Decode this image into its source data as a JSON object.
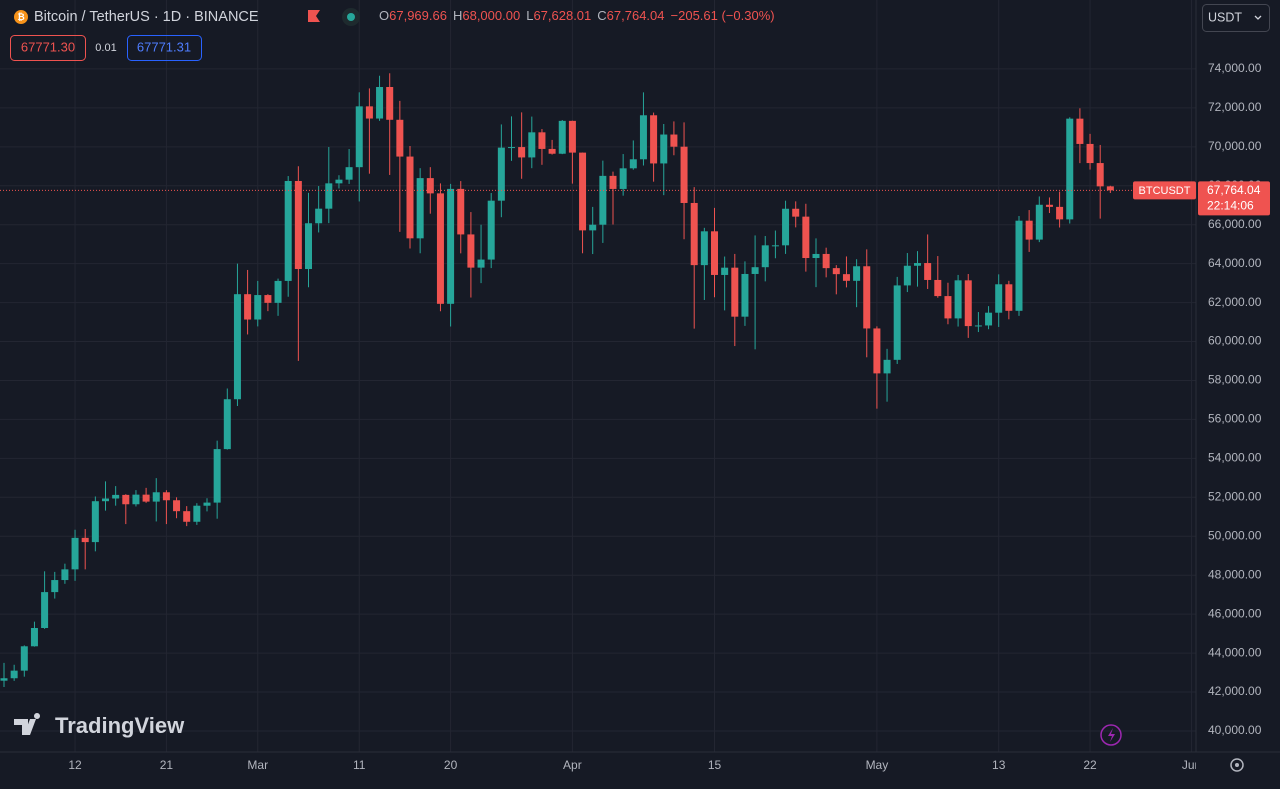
{
  "chart_data": {
    "type": "candlestick",
    "title": "Bitcoin / TetherUS · 1D · BINANCE",
    "ohlc_legend": [
      {
        "key": "O",
        "value": "67,969.66"
      },
      {
        "key": "H",
        "value": "68,000.00"
      },
      {
        "key": "L",
        "value": "67,628.01"
      },
      {
        "key": "C",
        "value": "67,764.04"
      }
    ],
    "change": "−205.61 (−0.30%)",
    "categories": [
      null,
      null,
      null,
      null,
      null,
      null,
      null,
      "12",
      null,
      null,
      null,
      null,
      null,
      null,
      null,
      null,
      "21",
      null,
      null,
      null,
      null,
      null,
      null,
      null,
      null,
      "Mar",
      null,
      null,
      null,
      null,
      null,
      null,
      null,
      null,
      null,
      "11",
      null,
      null,
      null,
      null,
      null,
      null,
      null,
      null,
      "20",
      null,
      null,
      null,
      null,
      null,
      null,
      null,
      null,
      null,
      null,
      null,
      "Apr",
      null,
      null,
      null,
      null,
      null,
      null,
      null,
      null,
      null,
      null,
      null,
      null,
      null,
      "15",
      null,
      null,
      null,
      null,
      null,
      null,
      null,
      null,
      null,
      null,
      null,
      null,
      null,
      null,
      null,
      "May",
      null,
      null,
      null,
      null,
      null,
      null,
      null,
      null,
      null,
      null,
      null,
      "13",
      null,
      null,
      null,
      null,
      null,
      null,
      null,
      null,
      "22",
      null,
      null,
      null,
      null,
      null,
      null,
      null,
      null,
      null,
      "Jun"
    ],
    "series": [
      {
        "name": "BTCUSDT",
        "up_color": "#26a69a",
        "down_color": "#ef5350",
        "open": [
          42582,
          42708,
          43098,
          44349,
          45288,
          47132,
          47751,
          48300,
          49917,
          49700,
          51800,
          51939,
          52124,
          51643,
          52137,
          51779,
          52259,
          51849,
          51288,
          50744,
          51568,
          51728,
          54476,
          57037,
          62432,
          61130,
          62387,
          61987,
          63113,
          68245,
          63724,
          66074,
          66823,
          68124,
          68313,
          68955,
          72078,
          71452,
          73072,
          71388,
          69499,
          65300,
          68393,
          67609,
          61937,
          67840,
          65501,
          63796,
          64209,
          67234,
          69958,
          69987,
          69455,
          70744,
          69892,
          69645,
          71333,
          69702,
          65709,
          66000,
          68508,
          67837,
          68896,
          69360,
          71620,
          69146,
          70631,
          70006,
          67116,
          63924,
          65661,
          63419,
          63793,
          61277,
          63470,
          63818,
          64941,
          64941,
          66819,
          66414,
          64289,
          64498,
          63770,
          63461,
          63118,
          63866,
          60672,
          58364,
          59060,
          62882,
          63892,
          64031,
          63162,
          62334,
          61188,
          63143,
          60793,
          60826,
          61481,
          62940,
          61578,
          66206,
          65235,
          67024,
          66915,
          66274,
          71446,
          70148,
          69166,
          67969.66,
          null,
          null,
          null,
          null,
          null,
          null,
          null,
          null
        ],
        "high": [
          43494,
          43400,
          44396,
          45614,
          48200,
          48170,
          48592,
          50334,
          50368,
          52043,
          52820,
          52575,
          52160,
          52369,
          52485,
          52985,
          52366,
          52000,
          51548,
          51698,
          51950,
          54910,
          57588,
          64000,
          63676,
          63114,
          62433,
          63231,
          68499,
          69000,
          67637,
          67985,
          69990,
          68541,
          69887,
          72800,
          73000,
          73650,
          73777,
          72357,
          70043,
          68904,
          68956,
          68124,
          68100,
          68240,
          66649,
          65999,
          67628,
          71150,
          71561,
          71769,
          71552,
          70913,
          70355,
          71377,
          71342,
          69708,
          66914,
          69291,
          68725,
          69629,
          70327,
          72797,
          71758,
          71172,
          71305,
          71256,
          67932,
          65840,
          66867,
          64365,
          64499,
          64117,
          65450,
          65419,
          65700,
          67233,
          67199,
          67075,
          65297,
          64820,
          63923,
          64370,
          64228,
          64734,
          60780,
          59625,
          63320,
          64545,
          64646,
          65500,
          64390,
          63019,
          63421,
          63469,
          61515,
          61818,
          63450,
          63118,
          66444,
          66752,
          67451,
          67400,
          67700,
          71515,
          71979,
          70666,
          70096,
          68000,
          null,
          null,
          null,
          null,
          null,
          null,
          null,
          null
        ],
        "low": [
          42258,
          42574,
          42788,
          44331,
          45242,
          46800,
          47557,
          47710,
          48300,
          49225,
          51314,
          51570,
          50625,
          51530,
          51715,
          50760,
          50625,
          50926,
          50521,
          50585,
          51280,
          50901,
          54450,
          56691,
          60364,
          60777,
          61561,
          61320,
          62300,
          59005,
          62787,
          65603,
          66082,
          67861,
          68094,
          67194,
          68620,
          71333,
          68555,
          65630,
          64780,
          64533,
          66566,
          61555,
          60775,
          64529,
          62260,
          63000,
          63772,
          66385,
          69280,
          68359,
          68903,
          69076,
          69601,
          69624,
          68110,
          64533,
          64493,
          65064,
          66011,
          67491,
          68824,
          69041,
          68210,
          67518,
          69567,
          65254,
          60660,
          62134,
          62274,
          61600,
          59768,
          60803,
          59600,
          63090,
          64277,
          64500,
          65864,
          63590,
          62794,
          63297,
          62424,
          62781,
          61765,
          59191,
          56552,
          56911,
          58848,
          62541,
          62822,
          62700,
          62250,
          60888,
          60769,
          60187,
          60487,
          60632,
          60749,
          61142,
          61319,
          64602,
          65106,
          66600,
          65857,
          66060,
          69162,
          68832,
          66312,
          67628.01,
          null,
          null,
          null,
          null,
          null,
          null,
          null,
          null
        ],
        "close": [
          42708,
          43098,
          44349,
          45288,
          47132,
          47751,
          48300,
          49917,
          49700,
          51800,
          51939,
          52124,
          51643,
          52137,
          51779,
          52259,
          51849,
          51288,
          50744,
          51568,
          51728,
          54476,
          57037,
          62432,
          61130,
          62387,
          61987,
          63113,
          68245,
          63724,
          66074,
          66823,
          68124,
          68313,
          68955,
          72078,
          71452,
          73072,
          71388,
          69499,
          65300,
          68393,
          67609,
          61937,
          67840,
          65501,
          63796,
          64209,
          67234,
          69958,
          69987,
          69455,
          70744,
          69892,
          69645,
          71333,
          69702,
          65709,
          66000,
          68508,
          67837,
          68896,
          69360,
          71620,
          69146,
          70631,
          70006,
          67116,
          63924,
          65661,
          63419,
          63793,
          61277,
          63470,
          63818,
          64941,
          64941,
          66819,
          66414,
          64289,
          64498,
          63770,
          63461,
          63118,
          63866,
          60672,
          58364,
          59060,
          62882,
          63892,
          64031,
          63162,
          62334,
          61188,
          63143,
          60793,
          60826,
          61481,
          62940,
          61578,
          66206,
          65235,
          67024,
          66915,
          66274,
          71446,
          70148,
          69166,
          67969.66,
          67764.04,
          null,
          null,
          null,
          null,
          null,
          null,
          null,
          null
        ]
      }
    ],
    "last_price_label": "67,764.04",
    "countdown": "22:14:06",
    "ylim": [
      38920,
      77540
    ],
    "yticks": [
      {
        "value": 40000,
        "label": "40,000.00"
      },
      {
        "value": 42000,
        "label": "42,000.00"
      },
      {
        "value": 44000,
        "label": "44,000.00"
      },
      {
        "value": 46000,
        "label": "46,000.00"
      },
      {
        "value": 48000,
        "label": "48,000.00"
      },
      {
        "value": 50000,
        "label": "50,000.00"
      },
      {
        "value": 52000,
        "label": "52,000.00"
      },
      {
        "value": 54000,
        "label": "54,000.00"
      },
      {
        "value": 56000,
        "label": "56,000.00"
      },
      {
        "value": 58000,
        "label": "58,000.00"
      },
      {
        "value": 60000,
        "label": "60,000.00"
      },
      {
        "value": 62000,
        "label": "62,000.00"
      },
      {
        "value": 64000,
        "label": "64,000.00"
      },
      {
        "value": 66000,
        "label": "66,000.00"
      },
      {
        "value": 68000,
        "label": "68,000.00"
      },
      {
        "value": 70000,
        "label": "70,000.00"
      },
      {
        "value": 72000,
        "label": "72,000.00"
      },
      {
        "value": 74000,
        "label": "74,000.00"
      }
    ],
    "grid": true,
    "grid_color": "#232632",
    "background": "#161a25",
    "trade_buttons": {
      "sell": "67771.30",
      "spread": "0.01",
      "buy": "67771.31"
    },
    "currency": "USDT",
    "watermark": "TradingView"
  }
}
